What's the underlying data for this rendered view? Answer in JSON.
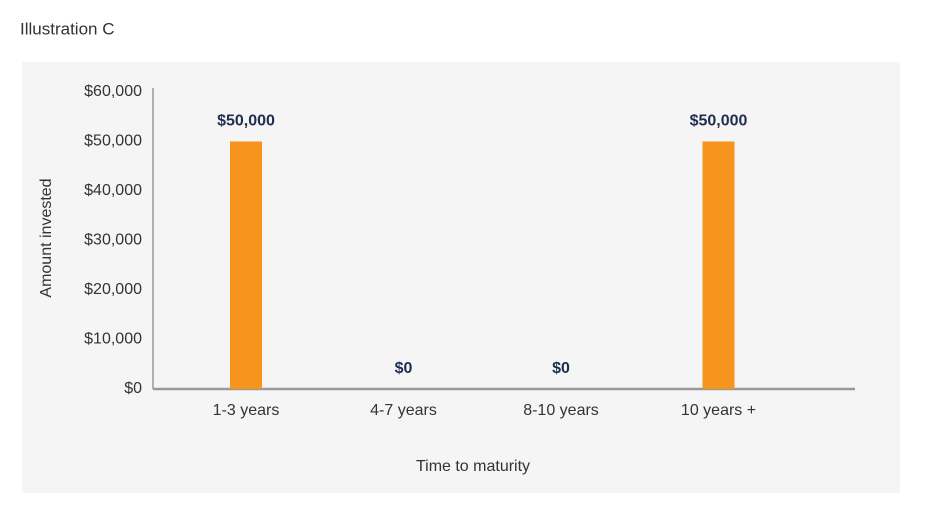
{
  "title": "Illustration C",
  "chart_data": {
    "type": "bar",
    "categories": [
      "1-3 years",
      "4-7 years",
      "8-10 years",
      "10 years +"
    ],
    "values": [
      50000,
      0,
      0,
      50000
    ],
    "value_labels": [
      "$50,000",
      "$0",
      "$0",
      "$50,000"
    ],
    "color": "#f7941d",
    "x_label": "Time to maturity",
    "y_label": "Amount invested",
    "ylim": [
      0,
      60000
    ],
    "yticks": [
      {
        "value": 0,
        "label": "$0"
      },
      {
        "value": 10000,
        "label": "$10,000"
      },
      {
        "value": 20000,
        "label": "$20,000"
      },
      {
        "value": 30000,
        "label": "$30,000"
      },
      {
        "value": 40000,
        "label": "$40,000"
      },
      {
        "value": 50000,
        "label": "$50,000"
      },
      {
        "value": 60000,
        "label": "$60,000"
      }
    ],
    "grid": false
  }
}
